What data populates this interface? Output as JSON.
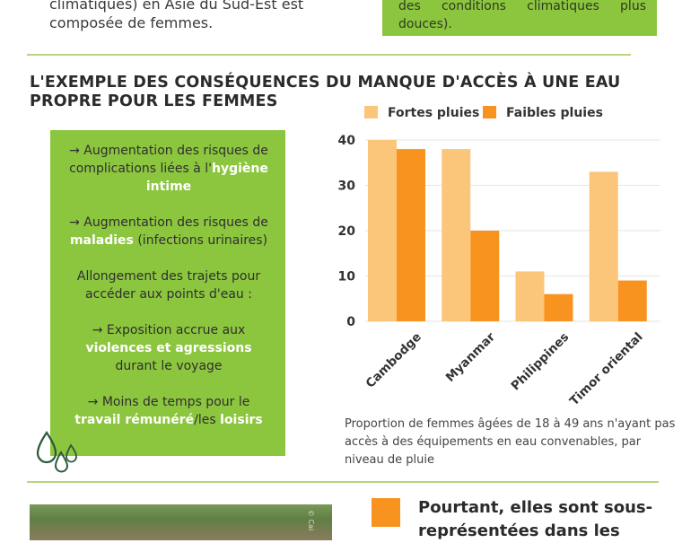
{
  "intro": {
    "left_text": "climatiques) en Asie du Sud-Est est composée de femmes.",
    "right_text": "des conditions climatiques plus douces)."
  },
  "section": {
    "title": "L'EXEMPLE DES CONSÉQUENCES DU MANQUE D'ACCÈS À UNE EAU PROPRE POUR LES FEMMES"
  },
  "consequences": {
    "item1_pre": "→ Augmentation des risques de complications liées à l'",
    "item1_hl": "hygiène intime",
    "item2_pre": "→ Augmentation des risques de ",
    "item2_hl": "maladies",
    "item2_post": " (infections urinaires)",
    "item3": "Allongement des trajets pour accéder aux points d'eau :",
    "item4_pre": "→ Exposition accrue aux ",
    "item4_hl": "violences et agressions",
    "item4_post": " durant le voyage",
    "item5_pre": "→ Moins de temps  pour le ",
    "item5_hl1": "travail rémunéré",
    "item5_mid": "/les ",
    "item5_hl2": "loisirs"
  },
  "chart_data": {
    "type": "bar",
    "categories": [
      "Cambodge",
      "Myanmar",
      "Philippines",
      "Timor oriental"
    ],
    "series": [
      {
        "name": "Fortes pluies",
        "values": [
          40,
          38,
          11,
          33
        ],
        "color": "#fbc57a"
      },
      {
        "name": "Faibles pluies",
        "values": [
          38,
          20,
          6,
          9
        ],
        "color": "#f7931e"
      }
    ],
    "yticks": [
      0,
      10,
      20,
      30,
      40
    ],
    "ylim": [
      0,
      40
    ],
    "grid": true,
    "legend": "top"
  },
  "chart_caption": "Proportion de femmes âgées de 18 à 49 ans n'ayant pas accès à des équipements en eau convenables, par niveau de pluie",
  "bottom": {
    "title": "Pourtant, elles sont sous-représentées dans les",
    "watermark": "© Cai"
  },
  "colors": {
    "accent_green": "#8cc63f",
    "accent_orange": "#f7931e",
    "light_orange": "#fbc57a"
  },
  "icons": {
    "water": "water-drops-icon"
  }
}
